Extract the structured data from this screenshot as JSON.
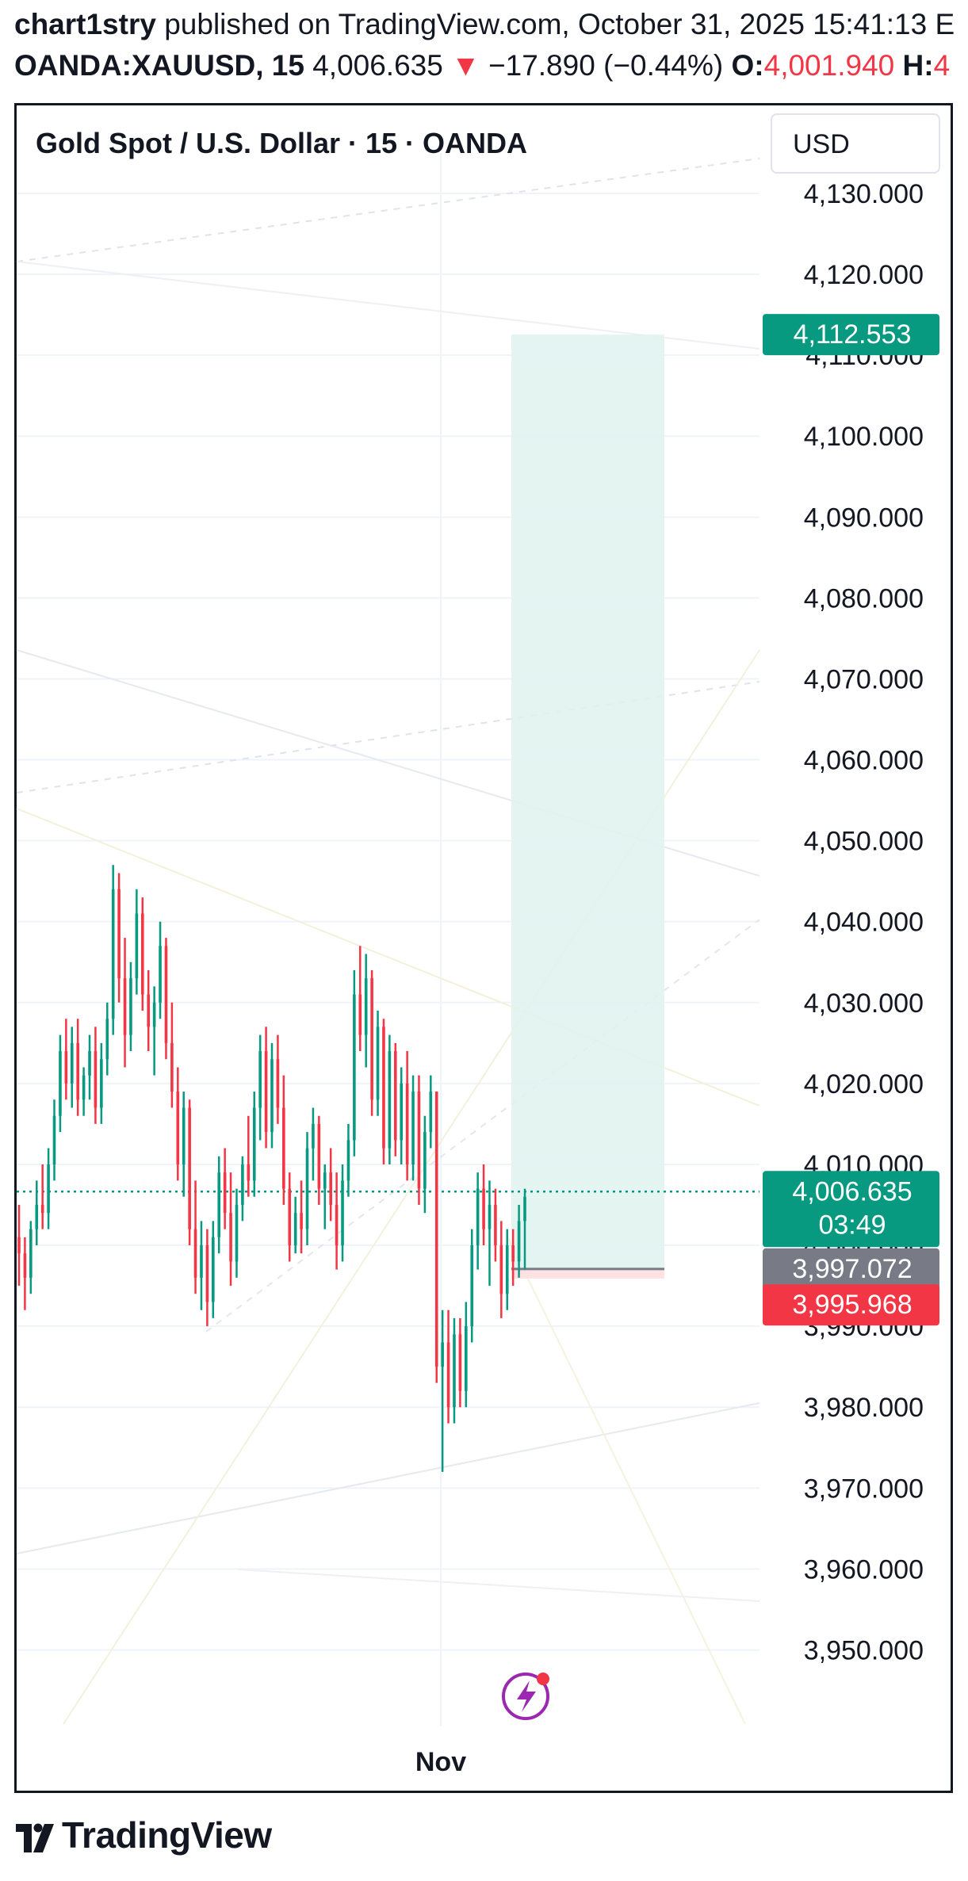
{
  "header": {
    "author": "chart1stry",
    "published_text": "published on TradingView.com, October 31, 2025 15:41:13 E",
    "symbol": "OANDA:XAUUSD, 15",
    "last": "4,006.635",
    "change_arrow": "▼",
    "change": "−17.890 (−0.44%)",
    "open_label": "O:",
    "open_value": "4,001.940",
    "high_label": "H:",
    "high_value": "4"
  },
  "chart_title": "Gold Spot / U.S. Dollar · 15 · OANDA",
  "currency": "USD",
  "chart_data": {
    "type": "candlestick",
    "x_tick_labels": [
      "Nov"
    ],
    "y_tick_labels": [
      "4,130.000",
      "4,120.000",
      "4,110.000",
      "4,100.000",
      "4,090.000",
      "4,080.000",
      "4,070.000",
      "4,060.000",
      "4,050.000",
      "4,040.000",
      "4,030.000",
      "4,020.000",
      "4,010.000",
      "4,000.000",
      "3,990.000",
      "3,980.000",
      "3,970.000",
      "3,960.000",
      "3,950.000"
    ],
    "y_ticks": [
      4130,
      4120,
      4110,
      4100,
      4090,
      4080,
      4070,
      4060,
      4050,
      4040,
      4030,
      4020,
      4010,
      4000,
      3990,
      3980,
      3970,
      3960,
      3950
    ],
    "ylim": [
      3940,
      4133
    ],
    "grid": true,
    "colors": {
      "up": "#089981",
      "down": "#f23645",
      "position_fill": "#dff3ee",
      "stop_fill": "#fde1e3"
    },
    "candles": [
      [
        4001,
        4005,
        3995,
        3999
      ],
      [
        3999,
        4001,
        3992,
        3996
      ],
      [
        3996,
        4003,
        3994,
        4002
      ],
      [
        4002,
        4008,
        4000,
        4005
      ],
      [
        4005,
        4010,
        4002,
        4004
      ],
      [
        4004,
        4012,
        4002,
        4010
      ],
      [
        4010,
        4018,
        4008,
        4016
      ],
      [
        4016,
        4026,
        4014,
        4024
      ],
      [
        4024,
        4028,
        4018,
        4020
      ],
      [
        4020,
        4027,
        4017,
        4025
      ],
      [
        4025,
        4028,
        4016,
        4018
      ],
      [
        4018,
        4022,
        4016,
        4021
      ],
      [
        4021,
        4026,
        4018,
        4024
      ],
      [
        4024,
        4027,
        4015,
        4017
      ],
      [
        4017,
        4025,
        4015,
        4023
      ],
      [
        4023,
        4030,
        4021,
        4028
      ],
      [
        4028,
        4047,
        4026,
        4044
      ],
      [
        4044,
        4046,
        4030,
        4033
      ],
      [
        4033,
        4038,
        4022,
        4026
      ],
      [
        4026,
        4035,
        4024,
        4033
      ],
      [
        4033,
        4044,
        4031,
        4041
      ],
      [
        4041,
        4043,
        4029,
        4031
      ],
      [
        4031,
        4034,
        4024,
        4027
      ],
      [
        4027,
        4032,
        4021,
        4030
      ],
      [
        4030,
        4040,
        4028,
        4037
      ],
      [
        4037,
        4038,
        4023,
        4025
      ],
      [
        4025,
        4030,
        4017,
        4019
      ],
      [
        4019,
        4022,
        4008,
        4010
      ],
      [
        4010,
        4019,
        4006,
        4017
      ],
      [
        4017,
        4018,
        4000,
        4002
      ],
      [
        4002,
        4008,
        3994,
        3996
      ],
      [
        3996,
        4003,
        3992,
        4000
      ],
      [
        4000,
        4002,
        3990,
        3993
      ],
      [
        3993,
        4003,
        3991,
        4001
      ],
      [
        4001,
        4011,
        3999,
        4009
      ],
      [
        4009,
        4012,
        4002,
        4004
      ],
      [
        4004,
        4009,
        3995,
        3998
      ],
      [
        3998,
        4007,
        3996,
        4005
      ],
      [
        4005,
        4011,
        4003,
        4010
      ],
      [
        4010,
        4016,
        4006,
        4008
      ],
      [
        4008,
        4019,
        4006,
        4017
      ],
      [
        4017,
        4026,
        4013,
        4024
      ],
      [
        4024,
        4027,
        4012,
        4014
      ],
      [
        4014,
        4025,
        4012,
        4023
      ],
      [
        4023,
        4026,
        4015,
        4017
      ],
      [
        4017,
        4021,
        4005,
        4007
      ],
      [
        4007,
        4009,
        3998,
        4000
      ],
      [
        4000,
        4006,
        3999,
        4004
      ],
      [
        4004,
        4008,
        3999,
        4002
      ],
      [
        4002,
        4014,
        4000,
        4012
      ],
      [
        4012,
        4017,
        4008,
        4015
      ],
      [
        4015,
        4016,
        4005,
        4007
      ],
      [
        4007,
        4010,
        4002,
        4009
      ],
      [
        4009,
        4012,
        4003,
        4005
      ],
      [
        4005,
        4009,
        3997,
        4000
      ],
      [
        4000,
        4010,
        3998,
        4008
      ],
      [
        4008,
        4015,
        4006,
        4013
      ],
      [
        4013,
        4034,
        4011,
        4031
      ],
      [
        4031,
        4037,
        4024,
        4026
      ],
      [
        4026,
        4036,
        4022,
        4033
      ],
      [
        4033,
        4034,
        4016,
        4018
      ],
      [
        4018,
        4029,
        4016,
        4027
      ],
      [
        4027,
        4028,
        4010,
        4012
      ],
      [
        4012,
        4026,
        4010,
        4024
      ],
      [
        4024,
        4025,
        4011,
        4013
      ],
      [
        4013,
        4022,
        4010,
        4020
      ],
      [
        4020,
        4024,
        4008,
        4010
      ],
      [
        4010,
        4021,
        4008,
        4019
      ],
      [
        4019,
        4021,
        4005,
        4007
      ],
      [
        4007,
        4016,
        4004,
        4014
      ],
      [
        4014,
        4021,
        4012,
        4019
      ],
      [
        4019,
        4019,
        3983,
        3985
      ],
      [
        3985,
        3992,
        3972,
        3988
      ],
      [
        3988,
        3992,
        3978,
        3980
      ],
      [
        3980,
        3991,
        3978,
        3989
      ],
      [
        3989,
        3991,
        3980,
        3982
      ],
      [
        3982,
        3993,
        3980,
        3990
      ],
      [
        3990,
        4002,
        3988,
        4000
      ],
      [
        4000,
        4009,
        3997,
        4007
      ],
      [
        4007,
        4010,
        4000,
        4002
      ],
      [
        4002,
        4008,
        3995,
        4005
      ],
      [
        4005,
        4007,
        3998,
        4000
      ],
      [
        4000,
        4003,
        3991,
        3994
      ],
      [
        3994,
        4002,
        3992,
        4000
      ],
      [
        4000,
        4002,
        3995,
        3998
      ],
      [
        3998,
        4005,
        3996,
        4003
      ],
      [
        4003,
        4007,
        3997,
        4006
      ]
    ],
    "position": {
      "entry": "3,997.072",
      "target": "4,112.553",
      "stop": "3,995.968"
    },
    "last_price_label": "4,006.635",
    "countdown": "03:49",
    "last_price": 4006.635,
    "entry_value": 3997.072,
    "target_value": 4112.553,
    "stop_value": 3995.968
  },
  "footer": {
    "brand": "TradingView"
  }
}
